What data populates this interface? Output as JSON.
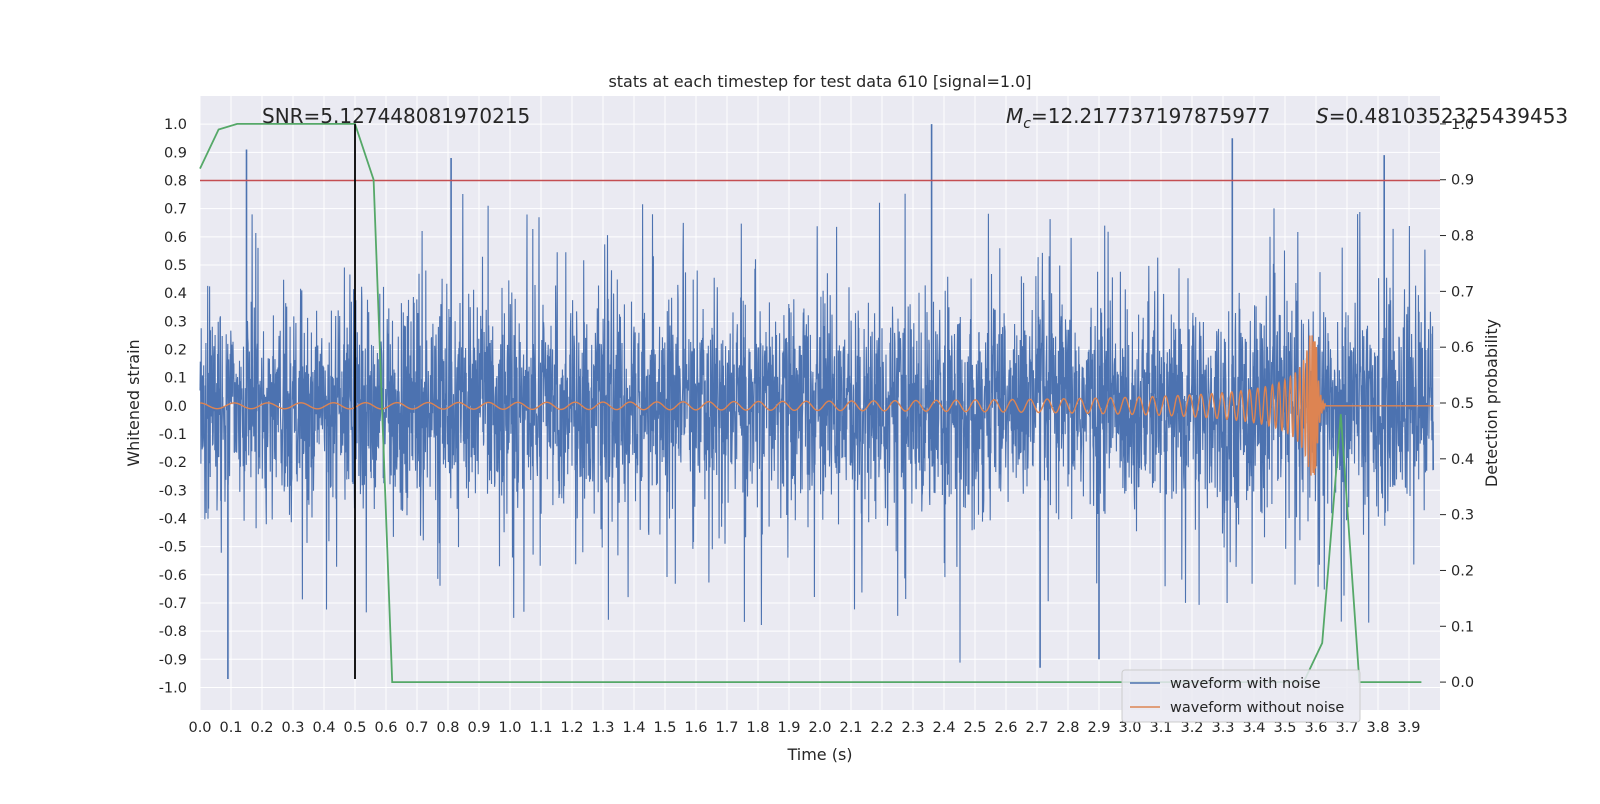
{
  "chart_data": {
    "type": "line",
    "title": "stats at each timestep for test data 610 [signal=1.0]",
    "xlabel": "Time (s)",
    "ylabel": "Whitened strain",
    "y2label": "Detection probability",
    "xlim": [
      0.0,
      4.0
    ],
    "ylim": [
      -1.08,
      1.1
    ],
    "y2lim": [
      -0.05,
      1.05
    ],
    "xticks": [
      0.0,
      0.1,
      0.2,
      0.3,
      0.4,
      0.5,
      0.6,
      0.7,
      0.8,
      0.9,
      1.0,
      1.1,
      1.2,
      1.3,
      1.4,
      1.5,
      1.6,
      1.7,
      1.8,
      1.9,
      2.0,
      2.1,
      2.2,
      2.3,
      2.4,
      2.5,
      2.6,
      2.7,
      2.8,
      2.9,
      3.0,
      3.1,
      3.2,
      3.3,
      3.4,
      3.5,
      3.6,
      3.7,
      3.8,
      3.9
    ],
    "xtick_labels": [
      "0.0",
      "0.1",
      "0.2",
      "0.3",
      "0.4",
      "0.5",
      "0.6",
      "0.7",
      "0.8",
      "0.9",
      "1.0",
      "1.1",
      "1.2",
      "1.3",
      "1.4",
      "1.5",
      "1.6",
      "1.7",
      "1.8",
      "1.9",
      "2.0",
      "2.1",
      "2.2",
      "2.3",
      "2.4",
      "2.5",
      "2.6",
      "2.7",
      "2.8",
      "2.9",
      "3.0",
      "3.1",
      "3.2",
      "3.3",
      "3.4",
      "3.5",
      "3.6",
      "3.7",
      "3.8",
      "3.9"
    ],
    "yticks": [
      1.0,
      0.9,
      0.8,
      0.7,
      0.6,
      0.5,
      0.4,
      0.3,
      0.2,
      0.1,
      0.0,
      -0.1,
      -0.2,
      -0.3,
      -0.4,
      -0.5,
      -0.6,
      -0.7,
      -0.8,
      -0.9,
      -1.0
    ],
    "ytick_labels": [
      "1.0",
      "0.9",
      "0.8",
      "0.7",
      "0.6",
      "0.5",
      "0.4",
      "0.3",
      "0.2",
      "0.1",
      "0.0",
      "-0.1",
      "-0.2",
      "-0.3",
      "-0.4",
      "-0.5",
      "-0.6",
      "-0.7",
      "-0.8",
      "-0.9",
      "-1.0"
    ],
    "y2ticks": [
      1.0,
      0.9,
      0.8,
      0.7,
      0.6,
      0.5,
      0.4,
      0.3,
      0.2,
      0.1,
      0.0
    ],
    "y2tick_labels": [
      "1.0",
      "0.9",
      "0.8",
      "0.7",
      "0.6",
      "0.5",
      "0.4",
      "0.3",
      "0.2",
      "0.1",
      "0.0"
    ],
    "grid": true,
    "legend_position": "bottom-right",
    "series": [
      {
        "name": "waveform with noise",
        "axis": "left",
        "color": "#4c72b0",
        "kind": "noise",
        "amplitude_typical": 0.45,
        "amplitude_peak": 1.0
      },
      {
        "name": "waveform without noise",
        "axis": "left",
        "color": "#dd8452",
        "kind": "chirp",
        "start_amplitude": 0.01,
        "peak_amplitude": 0.25,
        "peak_time": 3.6
      },
      {
        "axis": "right",
        "color": "#55a868",
        "kind": "detection_probability",
        "x": [
          0.0,
          0.06,
          0.12,
          0.5,
          0.56,
          0.62,
          3.56,
          3.62,
          3.68,
          3.74,
          3.94
        ],
        "y": [
          0.92,
          0.99,
          1.0,
          1.0,
          0.9,
          0.0,
          0.0,
          0.07,
          0.48,
          0.0,
          0.0
        ]
      }
    ],
    "threshold_line": {
      "axis": "left",
      "y": 0.8,
      "color": "#c44e52"
    },
    "vertical_line": {
      "x": 0.5,
      "y_range": [
        -0.97,
        1.0
      ],
      "color": "#000000"
    },
    "annotations": {
      "snr": "SNR=5.127448081970215",
      "mc_symbol": "M",
      "mc_subscript": "c",
      "mc_value": "=12.217737197875977",
      "s_symbol": "S",
      "s_value": "=0.4810352325439453"
    },
    "legend": [
      "waveform with noise",
      "waveform without noise"
    ]
  }
}
